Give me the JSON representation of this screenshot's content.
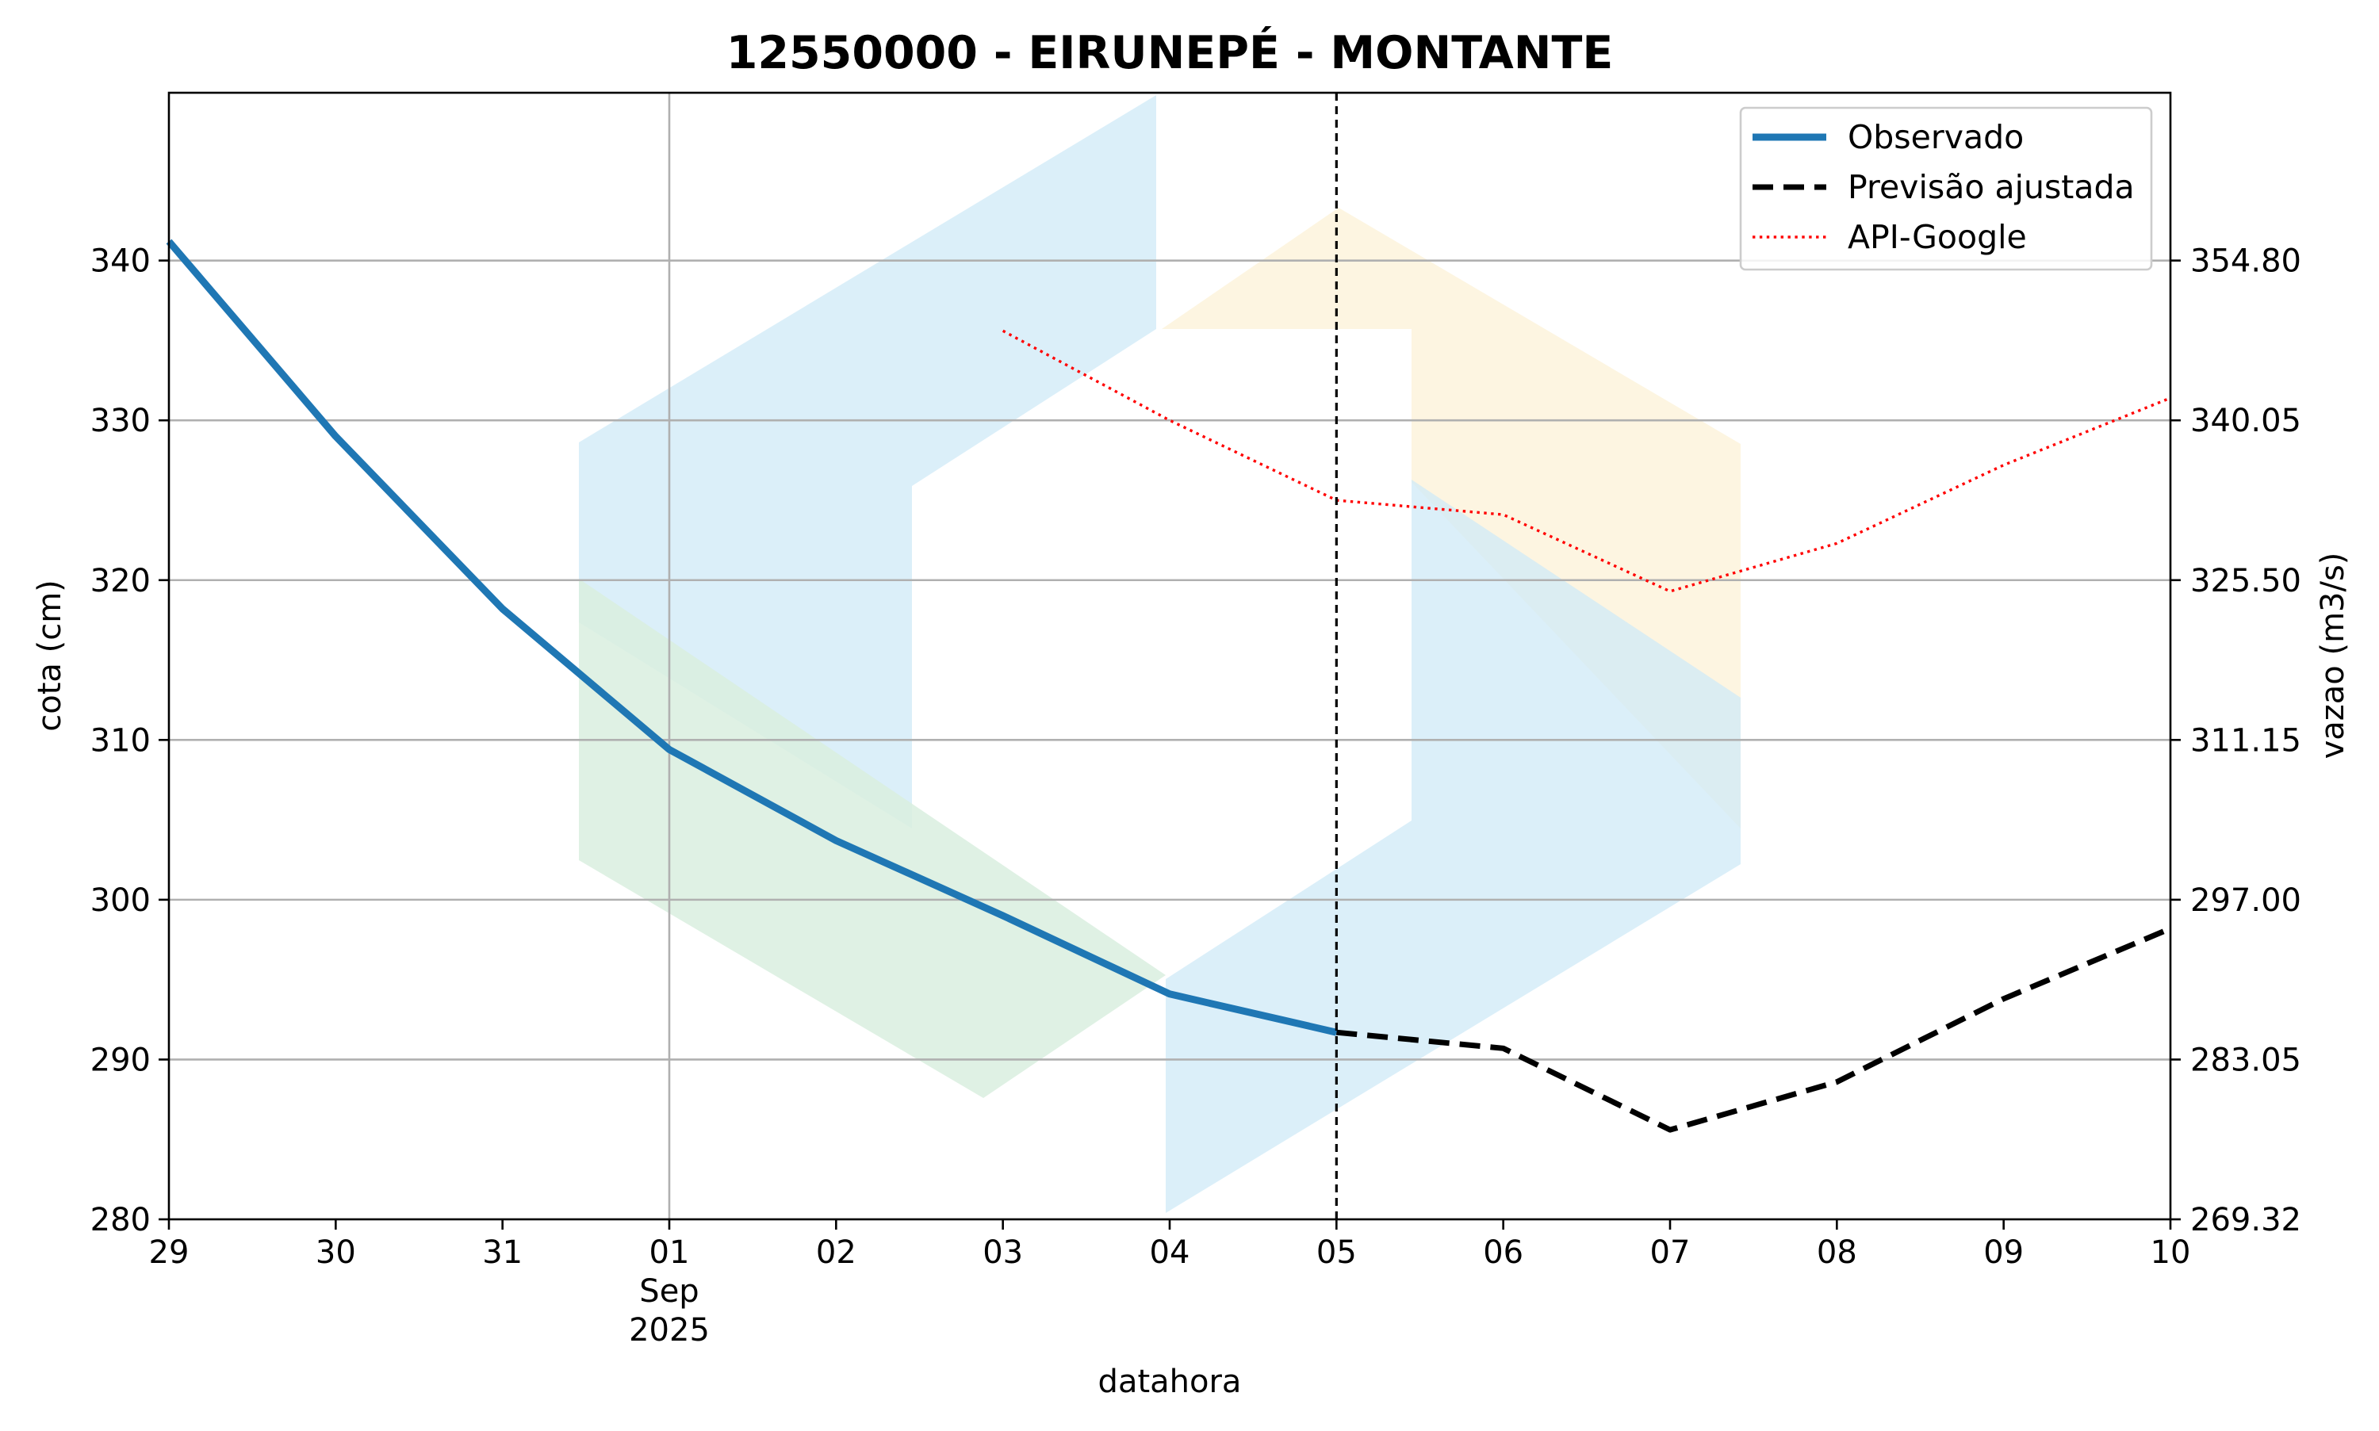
{
  "chart_data": {
    "type": "line",
    "title": "12550000 - EIRUNEPÉ - MONTANTE",
    "xlabel": "datahora",
    "ylabel_left": "cota (cm)",
    "ylabel_right": "vazao (m3/s)",
    "x_ticks": [
      {
        "label": "29",
        "sub": []
      },
      {
        "label": "30",
        "sub": []
      },
      {
        "label": "31",
        "sub": []
      },
      {
        "label": "01",
        "sub": [
          "Sep",
          "2025"
        ]
      },
      {
        "label": "02",
        "sub": []
      },
      {
        "label": "03",
        "sub": []
      },
      {
        "label": "04",
        "sub": []
      },
      {
        "label": "05",
        "sub": []
      },
      {
        "label": "06",
        "sub": []
      },
      {
        "label": "07",
        "sub": []
      },
      {
        "label": "08",
        "sub": []
      },
      {
        "label": "09",
        "sub": []
      },
      {
        "label": "10",
        "sub": []
      }
    ],
    "x_start": "2025-08-29",
    "x_end": "2025-09-10",
    "ylim_left": [
      280,
      350.5
    ],
    "yticks_left": [
      "280",
      "290",
      "300",
      "310",
      "320",
      "330",
      "340"
    ],
    "yticks_right": [
      "269.32",
      "283.05",
      "297.00",
      "311.15",
      "325.50",
      "340.05",
      "354.80"
    ],
    "grid": true,
    "legend_position": "top-right",
    "forecast_marker_date": "2025-09-05",
    "series": [
      {
        "name": "Observado",
        "style": "solid",
        "color": "#1f77b4",
        "points": [
          {
            "x": "2025-08-29",
            "y": 341.2
          },
          {
            "x": "2025-08-30",
            "y": 329.0
          },
          {
            "x": "2025-08-31",
            "y": 318.2
          },
          {
            "x": "2025-09-01",
            "y": 309.4
          },
          {
            "x": "2025-09-02",
            "y": 303.7
          },
          {
            "x": "2025-09-03",
            "y": 299.0
          },
          {
            "x": "2025-09-04",
            "y": 294.1
          },
          {
            "x": "2025-09-05",
            "y": 291.7
          }
        ]
      },
      {
        "name": "Previsão ajustada",
        "style": "dashed",
        "color": "#000000",
        "points": [
          {
            "x": "2025-09-05",
            "y": 291.7
          },
          {
            "x": "2025-09-06",
            "y": 290.7
          },
          {
            "x": "2025-09-07",
            "y": 285.6
          },
          {
            "x": "2025-09-08",
            "y": 288.6
          },
          {
            "x": "2025-09-09",
            "y": 293.8
          },
          {
            "x": "2025-09-10",
            "y": 298.2
          }
        ]
      },
      {
        "name": "API-Google",
        "style": "dotted",
        "color": "#ff0000",
        "points": [
          {
            "x": "2025-09-03",
            "y": 335.6
          },
          {
            "x": "2025-09-04",
            "y": 330.0
          },
          {
            "x": "2025-09-05",
            "y": 325.0
          },
          {
            "x": "2025-09-06",
            "y": 324.1
          },
          {
            "x": "2025-09-07",
            "y": 319.3
          },
          {
            "x": "2025-09-08",
            "y": 322.3
          },
          {
            "x": "2025-09-09",
            "y": 327.2
          },
          {
            "x": "2025-09-10",
            "y": 331.4
          }
        ]
      }
    ],
    "watermark_colors": [
      "#cfe9f7",
      "#d9efdf",
      "#fdf3dc"
    ]
  }
}
